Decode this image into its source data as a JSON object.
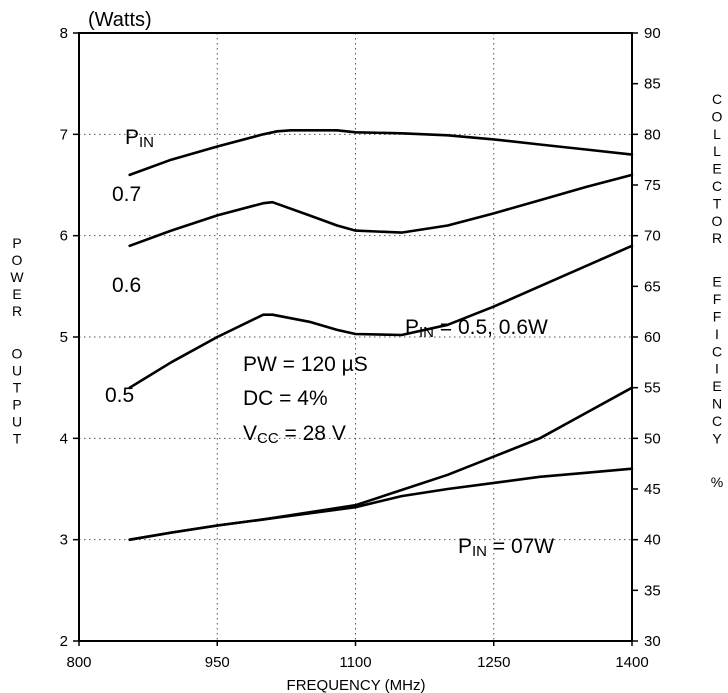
{
  "chart_data": {
    "type": "line",
    "units_label": "(Watts)",
    "xlabel": "FREQUENCY (MHz)",
    "ylabel_left": "POWER OUTPUT",
    "ylabel_right": "COLLECTOR EFFICIENCY %",
    "xlim": [
      800,
      1400
    ],
    "ylim_left": [
      2,
      8
    ],
    "ylim_right": [
      30,
      90
    ],
    "x_ticks": [
      "800",
      "950",
      "1100",
      "1250",
      "1400"
    ],
    "y_ticks_left": [
      "2",
      "3",
      "4",
      "5",
      "6",
      "7",
      "8"
    ],
    "y_ticks_right": [
      "30",
      "35",
      "40",
      "45",
      "50",
      "55",
      "60",
      "65",
      "70",
      "75",
      "80",
      "85",
      "90"
    ],
    "grid": true,
    "series": [
      {
        "name": "0.7",
        "axis": "left",
        "x": [
          855,
          900,
          950,
          1000,
          1015,
          1030,
          1080,
          1100,
          1150,
          1200,
          1250,
          1300,
          1350,
          1400
        ],
        "y": [
          6.6,
          6.75,
          6.88,
          7.0,
          7.03,
          7.04,
          7.04,
          7.02,
          7.01,
          6.99,
          6.95,
          6.9,
          6.85,
          6.8
        ]
      },
      {
        "name": "0.6",
        "axis": "left",
        "x": [
          855,
          900,
          950,
          1000,
          1010,
          1050,
          1080,
          1100,
          1150,
          1200,
          1250,
          1300,
          1350,
          1400
        ],
        "y": [
          5.9,
          6.05,
          6.2,
          6.32,
          6.33,
          6.2,
          6.1,
          6.05,
          6.03,
          6.1,
          6.22,
          6.35,
          6.48,
          6.6
        ]
      },
      {
        "name": "0.5",
        "axis": "left",
        "x": [
          855,
          900,
          950,
          1000,
          1010,
          1050,
          1080,
          1100,
          1150,
          1200,
          1250,
          1300,
          1350,
          1400
        ],
        "y": [
          4.5,
          4.75,
          5.0,
          5.22,
          5.22,
          5.15,
          5.07,
          5.03,
          5.02,
          5.12,
          5.3,
          5.5,
          5.7,
          5.9
        ]
      },
      {
        "name": "PIN = 0.5, 0.6W",
        "axis": "right",
        "x": [
          855,
          900,
          950,
          1000,
          1050,
          1100,
          1150,
          1200,
          1250,
          1300,
          1350,
          1400
        ],
        "y": [
          40.0,
          40.7,
          41.4,
          42.0,
          42.7,
          43.4,
          44.9,
          46.4,
          48.2,
          50.0,
          52.5,
          55.0
        ]
      },
      {
        "name": "PIN = 07W",
        "axis": "right",
        "x": [
          855,
          900,
          950,
          1000,
          1050,
          1100,
          1150,
          1200,
          1250,
          1300,
          1350,
          1400
        ],
        "y": [
          40.0,
          40.7,
          41.4,
          42.0,
          42.6,
          43.2,
          44.3,
          45.0,
          45.6,
          46.2,
          46.6,
          47.0
        ]
      }
    ],
    "annotations": {
      "pin": "PIN",
      "label_07": "0.7",
      "label_06": "0.6",
      "label_05": "0.5",
      "pw": "PW = 120 µS",
      "dc": "DC = 4%",
      "vcc": "VCC = 28 V",
      "eff_high": "PIN = 0.5, 0.6W",
      "eff_low": "PIN = 07W"
    }
  }
}
